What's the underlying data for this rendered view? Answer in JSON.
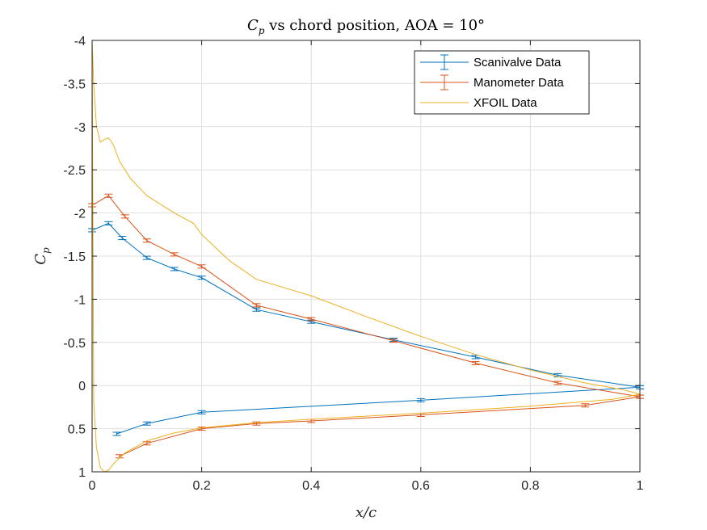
{
  "chart_data": {
    "type": "line",
    "title": "C_p vs chord position, AOA = 10°",
    "xlabel": "x/c",
    "ylabel": "C_p",
    "xlim": [
      0,
      1
    ],
    "ylim": [
      1,
      -4
    ],
    "y_reversed": true,
    "grid": true,
    "legend_position": "top-right",
    "x_ticks": [
      "0",
      "0.2",
      "0.4",
      "0.6",
      "0.8",
      "1"
    ],
    "y_ticks": [
      "-4",
      "-3.5",
      "-3",
      "-2.5",
      "-2",
      "-1.5",
      "-1",
      "-0.5",
      "0",
      "0.5",
      "1"
    ],
    "series": [
      {
        "name": "Scanivalve Data",
        "color": "#0072BD",
        "error_bars": true,
        "upper": {
          "x": [
            0.0,
            0.03,
            0.055,
            0.1,
            0.15,
            0.2,
            0.3,
            0.4,
            0.55,
            0.7,
            0.85,
            1.0
          ],
          "y": [
            -1.8,
            -1.88,
            -1.71,
            -1.48,
            -1.35,
            -1.25,
            -0.88,
            -0.74,
            -0.53,
            -0.33,
            -0.12,
            0.02
          ]
        },
        "lower": {
          "x": [
            0.045,
            0.1,
            0.2,
            0.6,
            1.0
          ],
          "y": [
            0.56,
            0.44,
            0.31,
            0.17,
            0.02
          ]
        }
      },
      {
        "name": "Manometer Data",
        "color": "#D95319",
        "error_bars": true,
        "upper": {
          "x": [
            0.0,
            0.03,
            0.06,
            0.1,
            0.15,
            0.2,
            0.3,
            0.4,
            0.55,
            0.7,
            0.85,
            1.0
          ],
          "y": [
            -2.09,
            -2.2,
            -1.96,
            -1.68,
            -1.52,
            -1.38,
            -0.93,
            -0.77,
            -0.52,
            -0.26,
            -0.03,
            0.13
          ]
        },
        "lower": {
          "x": [
            0.05,
            0.1,
            0.2,
            0.3,
            0.4,
            0.6,
            0.9,
            1.0
          ],
          "y": [
            0.82,
            0.67,
            0.5,
            0.44,
            0.41,
            0.34,
            0.23,
            0.13
          ]
        }
      },
      {
        "name": "XFOIL Data",
        "color": "#EDB120",
        "error_bars": false,
        "upper": {
          "x": [
            0.0,
            0.003,
            0.008,
            0.015,
            0.022,
            0.03,
            0.038,
            0.05,
            0.07,
            0.1,
            0.15,
            0.185,
            0.2,
            0.25,
            0.3,
            0.4,
            0.5,
            0.6,
            0.7,
            0.8,
            0.9,
            0.97,
            1.0
          ],
          "y": [
            -4.0,
            -3.5,
            -3.0,
            -2.82,
            -2.85,
            -2.87,
            -2.8,
            -2.6,
            -2.4,
            -2.2,
            -2.0,
            -1.88,
            -1.75,
            -1.45,
            -1.23,
            -1.04,
            -0.8,
            -0.57,
            -0.36,
            -0.18,
            -0.03,
            0.05,
            0.1
          ]
        },
        "lower": {
          "x": [
            0.0,
            0.003,
            0.008,
            0.015,
            0.022,
            0.03,
            0.04,
            0.06,
            0.1,
            0.15,
            0.2,
            0.3,
            0.4,
            0.6,
            0.8,
            0.95,
            1.0
          ],
          "y": [
            -4.0,
            0.2,
            0.72,
            0.95,
            1.0,
            0.98,
            0.9,
            0.78,
            0.64,
            0.55,
            0.49,
            0.43,
            0.39,
            0.32,
            0.24,
            0.16,
            0.1
          ]
        }
      }
    ]
  }
}
